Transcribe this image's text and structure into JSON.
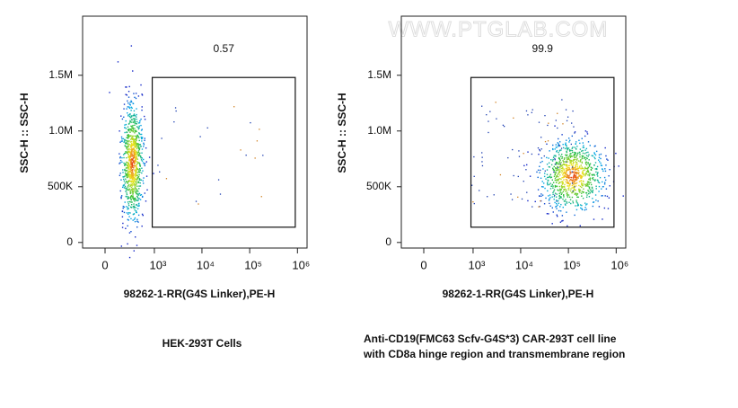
{
  "watermark": "WWW.PTGLAB.COM",
  "chart_data": [
    {
      "type": "scatter",
      "xlabel": "98262-1-RR(G4S Linker),PE-H",
      "ylabel": "SSC-H :: SSC-H",
      "caption": [
        "HEK-293T Cells"
      ],
      "xscale": "biexponential",
      "xlim": [
        -240,
        1600000
      ],
      "xticks": [
        0,
        {
          "value": 1000,
          "label": "10³"
        },
        {
          "value": 10000,
          "label": "10⁴"
        },
        {
          "value": 100000,
          "label": "10⁵"
        },
        {
          "value": 1000000,
          "label": "10⁶"
        }
      ],
      "ylim": [
        -50000,
        2030000
      ],
      "yticks": [
        0,
        {
          "value": 500000,
          "label": "500K"
        },
        {
          "value": 1000000,
          "label": "1.0M"
        },
        {
          "value": 1500000,
          "label": "1.5M"
        }
      ],
      "gate": {
        "x": [
          900,
          900000
        ],
        "y": [
          137000,
          1480000
        ],
        "percent": 0.57
      }
    },
    {
      "type": "scatter",
      "xlabel": "98262-1-RR(G4S Linker),PE-H",
      "ylabel": "SSC-H :: SSC-H",
      "caption": [
        "Anti-CD19(FMC63 Scfv-G4S*3) CAR-293T cell line",
        "with CD8a hinge region and transmembrane region"
      ],
      "xscale": "biexponential",
      "xlim": [
        -240,
        1600000
      ],
      "xticks": [
        0,
        {
          "value": 1000,
          "label": "10³"
        },
        {
          "value": 10000,
          "label": "10⁴"
        },
        {
          "value": 100000,
          "label": "10⁵"
        },
        {
          "value": 1000000,
          "label": "10⁶"
        }
      ],
      "ylim": [
        -50000,
        2030000
      ],
      "yticks": [
        0,
        {
          "value": 500000,
          "label": "500K"
        },
        {
          "value": 1000000,
          "label": "1.0M"
        },
        {
          "value": 1500000,
          "label": "1.5M"
        }
      ],
      "gate": {
        "x": [
          900,
          900000
        ],
        "y": [
          137000,
          1480000
        ],
        "percent": 99.9
      }
    }
  ]
}
